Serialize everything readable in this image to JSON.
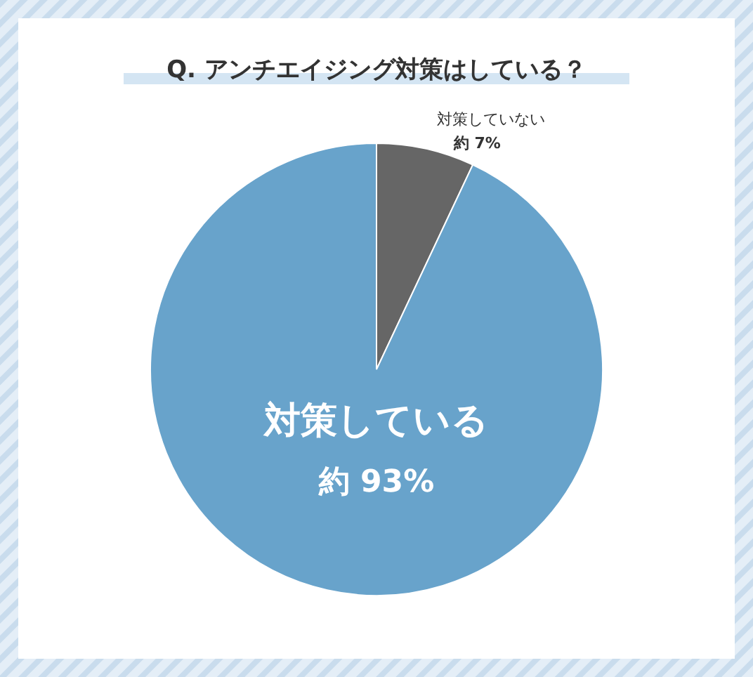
{
  "chart_data": {
    "type": "pie",
    "title": "Q. アンチエイジング対策はしている？",
    "categories": [
      "対策していない",
      "対策している"
    ],
    "values": [
      7,
      93
    ],
    "colors": [
      "#666666",
      "#68a3cb"
    ],
    "value_labels": [
      "約 7%",
      "約 93%"
    ]
  }
}
